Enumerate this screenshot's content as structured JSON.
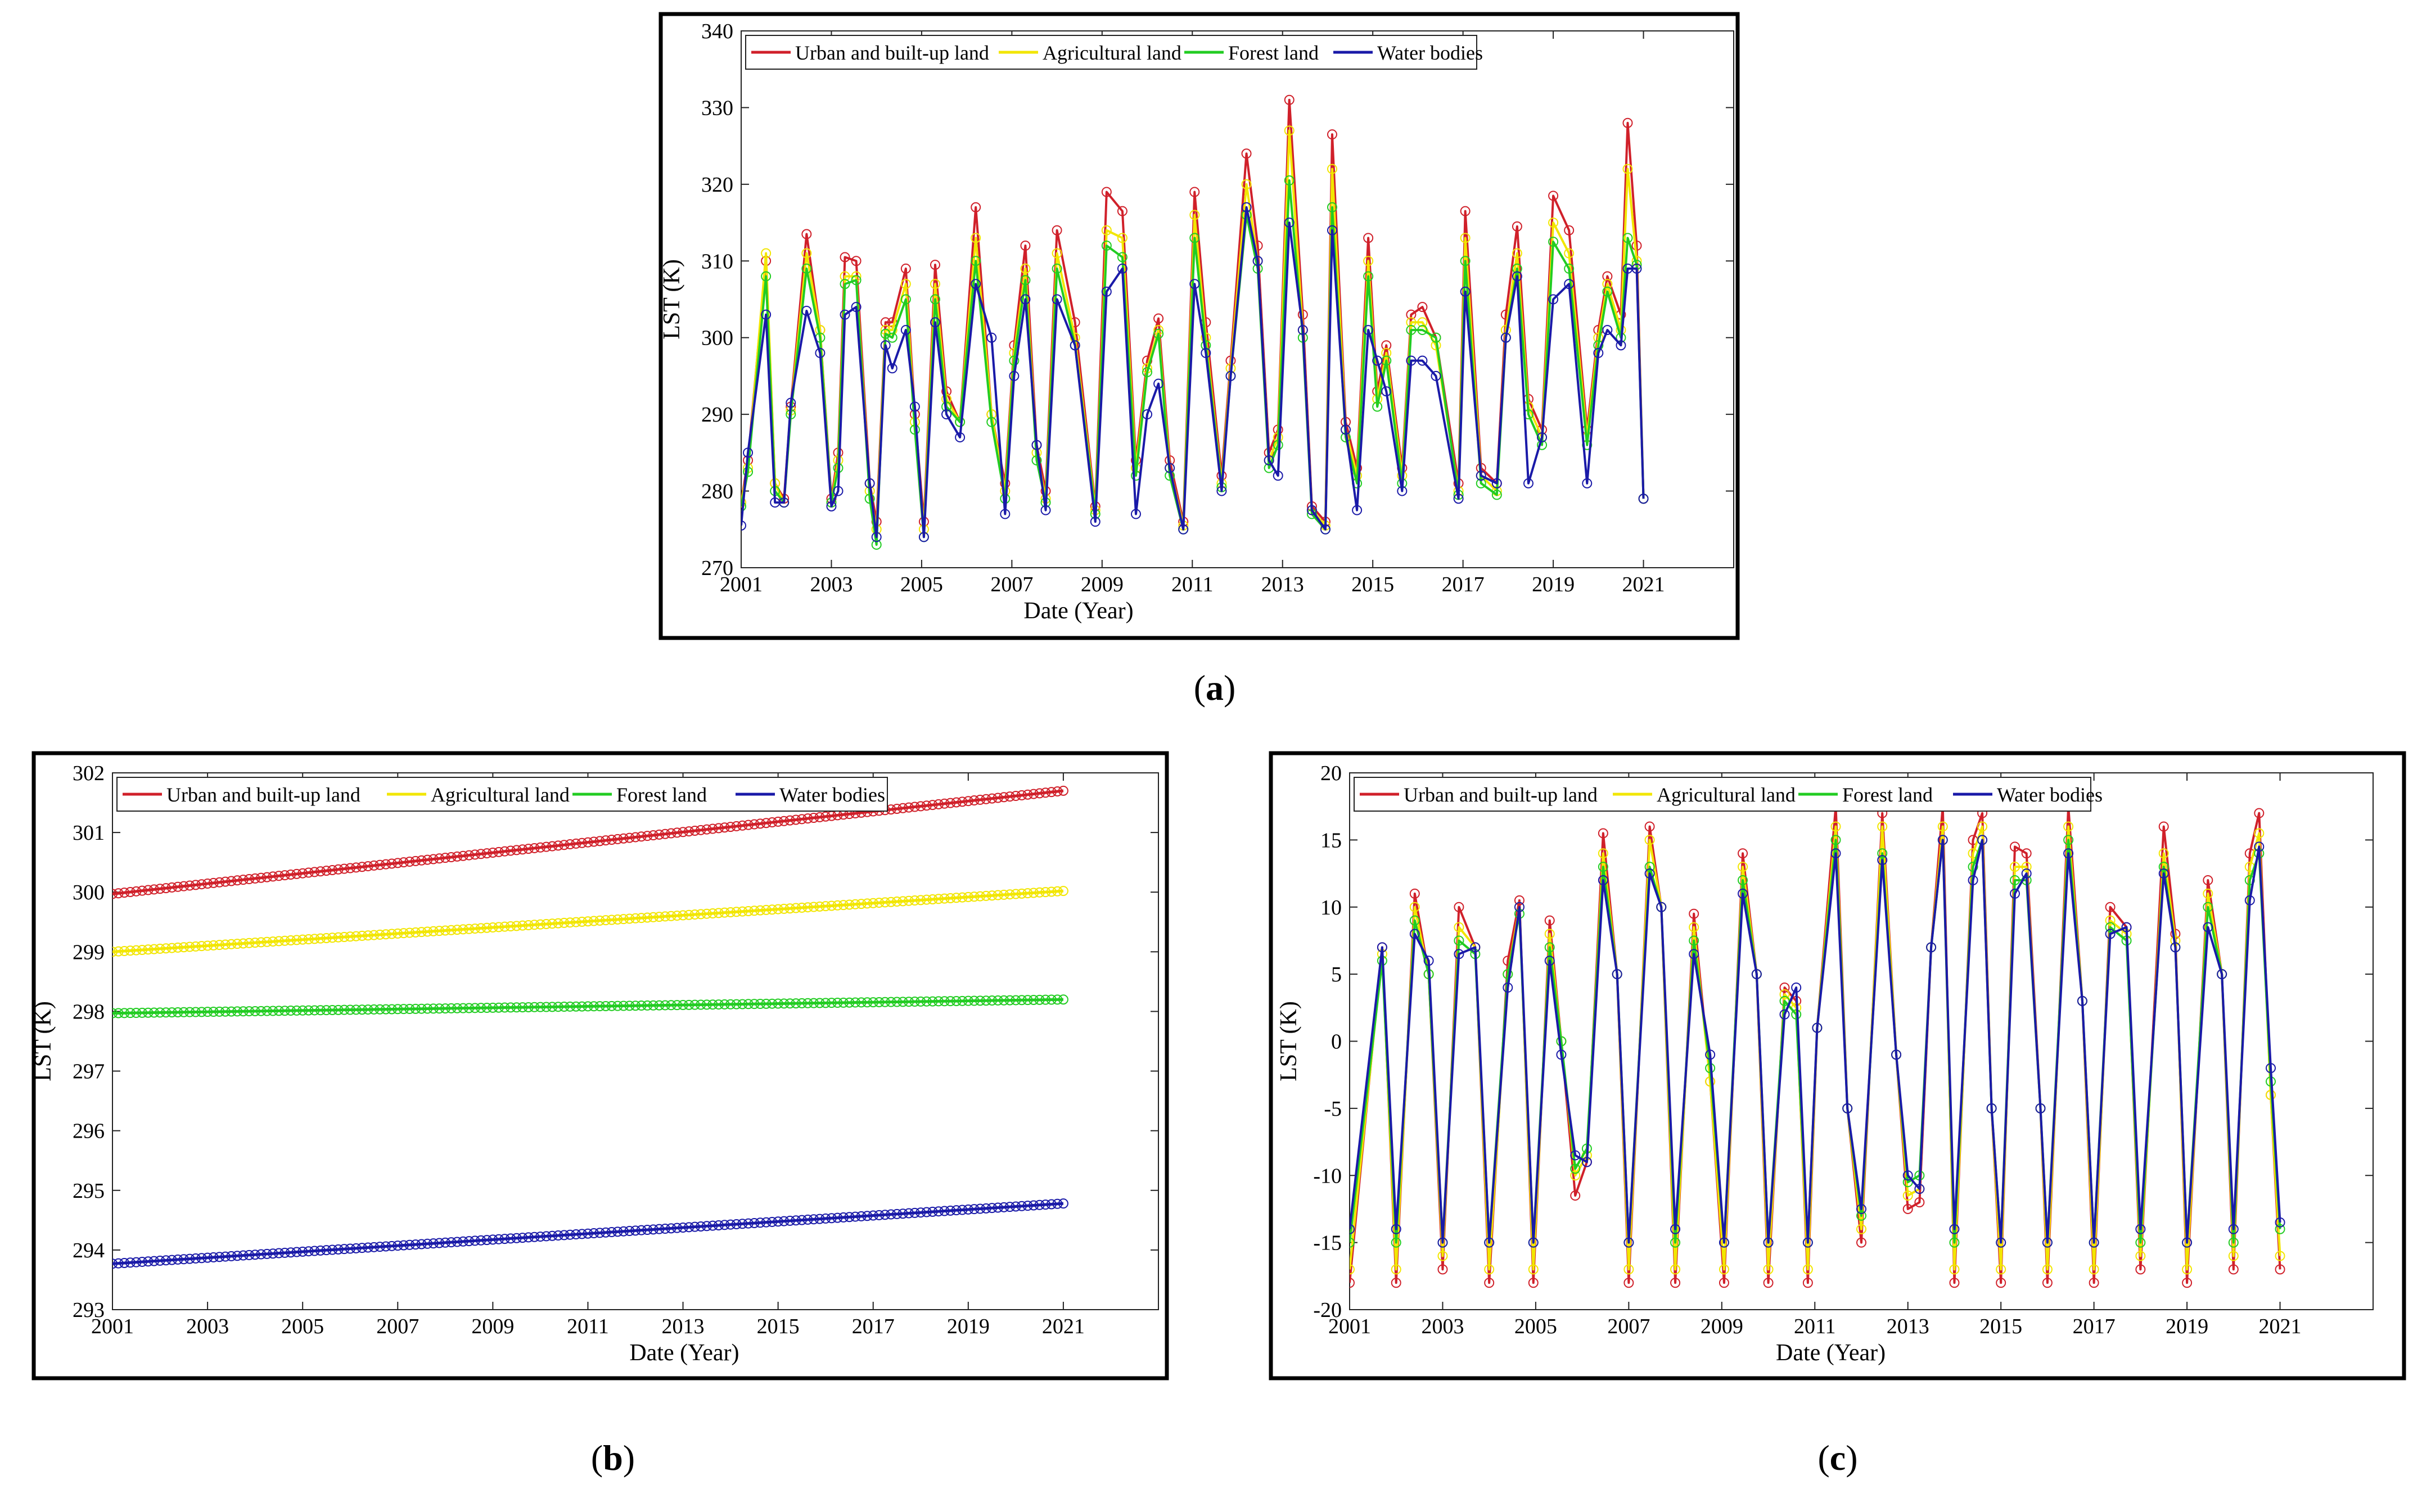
{
  "figure": {
    "panel_labels": [
      "a",
      "b",
      "c"
    ],
    "label_open": "(",
    "label_close": ")"
  },
  "colors": {
    "urban": "#d0202a",
    "agricultural": "#f2e600",
    "forest": "#22cc22",
    "water": "#1a1aa8",
    "frame": "#000000"
  },
  "chart_data": [
    {
      "type": "line",
      "panel": "a",
      "title": "",
      "xlabel": "Date (Year)",
      "ylabel": "LST (K)",
      "xlim": [
        2001,
        2023
      ],
      "ylim": [
        270,
        340
      ],
      "xticks": [
        2001,
        2003,
        2005,
        2007,
        2009,
        2011,
        2013,
        2015,
        2017,
        2019,
        2021
      ],
      "yticks": [
        270,
        280,
        290,
        300,
        310,
        320,
        330,
        340
      ],
      "legend": [
        "Urban and built-up land",
        "Agricultural land",
        "Forest land",
        "Water bodies"
      ],
      "legend_position": "top-left",
      "x": [
        2001.0,
        2001.15,
        2001.55,
        2001.75,
        2001.95,
        2002.1,
        2002.45,
        2002.75,
        2003.0,
        2003.15,
        2003.3,
        2003.55,
        2003.85,
        2004.0,
        2004.2,
        2004.35,
        2004.65,
        2004.85,
        2005.05,
        2005.3,
        2005.55,
        2005.85,
        2006.2,
        2006.55,
        2006.85,
        2007.05,
        2007.3,
        2007.55,
        2007.75,
        2008.0,
        2008.4,
        2008.85,
        2009.1,
        2009.45,
        2009.75,
        2010.0,
        2010.25,
        2010.5,
        2010.8,
        2011.05,
        2011.3,
        2011.65,
        2011.85,
        2012.2,
        2012.45,
        2012.7,
        2012.9,
        2013.15,
        2013.45,
        2013.65,
        2013.95,
        2014.1,
        2014.4,
        2014.65,
        2014.9,
        2015.1,
        2015.3,
        2015.65,
        2015.85,
        2016.1,
        2016.4,
        2016.9,
        2017.05,
        2017.4,
        2017.75,
        2017.95,
        2018.2,
        2018.45,
        2018.75,
        2019.0,
        2019.35,
        2019.75,
        2020.0,
        2020.2,
        2020.5,
        2020.65,
        2020.85,
        2021.0
      ],
      "series": [
        {
          "name": "Urban and built-up land",
          "values": [
            278.5,
            284,
            310,
            281,
            279,
            291,
            313.5,
            301,
            279,
            285,
            310.5,
            310,
            281,
            276,
            302,
            302,
            309,
            290,
            276,
            309.5,
            293,
            289,
            317,
            290,
            281,
            299,
            312,
            286,
            280,
            314,
            302,
            278,
            319,
            316.5,
            284,
            297,
            302.5,
            284,
            276,
            319,
            302,
            282,
            297,
            324,
            312,
            285,
            288,
            331,
            303,
            278,
            276,
            326.5,
            289,
            283,
            313,
            293,
            299,
            283,
            303,
            304,
            300,
            281,
            316.5,
            283,
            281,
            303,
            314.5,
            292,
            288,
            318.5,
            314,
            288,
            301,
            308,
            303,
            328,
            312,
            279
          ]
        },
        {
          "name": "Agricultural land",
          "values": [
            278.5,
            283,
            311,
            281,
            278.5,
            290.5,
            311,
            301,
            278.5,
            284,
            308,
            308,
            280,
            275,
            301,
            301,
            307,
            289,
            275,
            307,
            292,
            289,
            313,
            290,
            280,
            298,
            309,
            285,
            279,
            311,
            300,
            277.5,
            314,
            313,
            283,
            296,
            301,
            283,
            275.5,
            316,
            300,
            281,
            296,
            320,
            310,
            284,
            287,
            327,
            301,
            277.5,
            275.5,
            322,
            288,
            282,
            310,
            292,
            298,
            282,
            302,
            302,
            299,
            280,
            313,
            282,
            280,
            301,
            311,
            291,
            287,
            315,
            311,
            287,
            300,
            307,
            301,
            322,
            310,
            279
          ]
        },
        {
          "name": "Forest land",
          "values": [
            278,
            282.5,
            308,
            280,
            278.5,
            290,
            309,
            300,
            278.5,
            283,
            307,
            307.5,
            279,
            273,
            300.5,
            300,
            305,
            288,
            274,
            305,
            291,
            289,
            310,
            289,
            279,
            297,
            307.5,
            284,
            278.5,
            309,
            299,
            277,
            312,
            310.5,
            282,
            295.5,
            300.5,
            282,
            275,
            313,
            299,
            280.5,
            295,
            316,
            309,
            283,
            286,
            320.5,
            300,
            277,
            275,
            317,
            287,
            281,
            308,
            291,
            297,
            281,
            301,
            301,
            300,
            279.5,
            310,
            281,
            279.5,
            300,
            309,
            290,
            286,
            312.5,
            309,
            286,
            299,
            306,
            300,
            313,
            309.5,
            279
          ]
        },
        {
          "name": "Water bodies",
          "values": [
            275.5,
            285,
            303,
            278.5,
            278.5,
            291.5,
            303.5,
            298,
            278,
            280,
            303,
            304,
            281,
            274,
            299,
            296,
            301,
            291,
            274,
            302,
            290,
            287,
            307,
            300,
            277,
            295,
            305,
            286,
            277.5,
            305,
            299,
            276,
            306,
            309,
            277,
            290,
            294,
            283,
            275,
            307,
            298,
            280,
            295,
            317,
            310,
            284,
            282,
            315,
            301,
            277.5,
            275,
            314,
            288,
            277.5,
            301,
            297,
            293,
            280,
            297,
            297,
            295,
            279,
            306,
            282,
            281,
            300,
            308,
            281,
            287,
            305,
            307,
            281,
            298,
            301,
            299,
            309,
            309,
            279
          ]
        }
      ]
    },
    {
      "type": "line",
      "panel": "b",
      "title": "",
      "xlabel": "Date (Year)",
      "ylabel": "LST (K)",
      "xlim": [
        2001,
        2023
      ],
      "ylim": [
        293,
        302
      ],
      "xticks": [
        2001,
        2003,
        2005,
        2007,
        2009,
        2011,
        2013,
        2015,
        2017,
        2019,
        2021
      ],
      "yticks": [
        293,
        294,
        295,
        296,
        297,
        298,
        299,
        300,
        301,
        302
      ],
      "legend": [
        "Urban and built-up land",
        "Agricultural land",
        "Forest land",
        "Water bodies"
      ],
      "legend_position": "top-left",
      "x": [
        2001,
        2021
      ],
      "series": [
        {
          "name": "Urban and built-up land",
          "values": [
            299.97,
            301.7
          ]
        },
        {
          "name": "Agricultural land",
          "values": [
            299.0,
            300.02
          ]
        },
        {
          "name": "Forest land",
          "values": [
            297.97,
            298.2
          ]
        },
        {
          "name": "Water bodies",
          "values": [
            293.77,
            294.78
          ]
        }
      ]
    },
    {
      "type": "line",
      "panel": "c",
      "title": "",
      "xlabel": "Date (Year)",
      "ylabel": "LST (K)",
      "xlim": [
        2001,
        2023
      ],
      "ylim": [
        -20,
        20
      ],
      "xticks": [
        2001,
        2003,
        2005,
        2007,
        2009,
        2011,
        2013,
        2015,
        2017,
        2019,
        2021
      ],
      "yticks": [
        -20,
        -15,
        -10,
        -5,
        0,
        5,
        10,
        15,
        20
      ],
      "legend": [
        "Urban and built-up land",
        "Agricultural land",
        "Forest land",
        "Water bodies"
      ],
      "legend_position": "top-left",
      "x": [
        2001.0,
        2001.7,
        2002.0,
        2002.4,
        2002.7,
        2003.0,
        2003.35,
        2003.7,
        2004.0,
        2004.4,
        2004.65,
        2004.95,
        2005.3,
        2005.55,
        2005.85,
        2006.1,
        2006.45,
        2006.75,
        2007.0,
        2007.45,
        2007.7,
        2008.0,
        2008.4,
        2008.75,
        2009.05,
        2009.45,
        2009.75,
        2010.0,
        2010.35,
        2010.6,
        2010.85,
        2011.05,
        2011.45,
        2011.7,
        2012.0,
        2012.45,
        2012.75,
        2013.0,
        2013.25,
        2013.5,
        2013.75,
        2014.0,
        2014.4,
        2014.6,
        2014.8,
        2015.0,
        2015.3,
        2015.55,
        2015.85,
        2016.0,
        2016.45,
        2016.75,
        2017.0,
        2017.35,
        2017.7,
        2018.0,
        2018.5,
        2018.75,
        2019.0,
        2019.45,
        2019.75,
        2020.0,
        2020.35,
        2020.55,
        2020.8,
        2021.0
      ],
      "series": [
        {
          "name": "Urban and built-up land",
          "values": [
            -18,
            7,
            -18,
            11,
            5,
            -17,
            10,
            7,
            -18,
            6,
            10.5,
            -18,
            9,
            0,
            -11.5,
            -9,
            15.5,
            5,
            -18,
            16,
            10,
            -18,
            9.5,
            -3,
            -18,
            14,
            5,
            -18,
            4,
            3,
            -18,
            1,
            17.5,
            -5,
            -15,
            17,
            -1,
            -12.5,
            -12,
            7,
            17.5,
            -18,
            15,
            17,
            -5,
            -18,
            14.5,
            14,
            -5,
            -18,
            17.5,
            3,
            -18,
            10,
            8.5,
            -17,
            16,
            8,
            -18,
            12,
            5,
            -17,
            14,
            17,
            -4,
            -17
          ]
        },
        {
          "name": "Agricultural land",
          "values": [
            -17,
            6.5,
            -17,
            10,
            5,
            -16,
            8.5,
            7,
            -17,
            5,
            10,
            -17,
            8,
            0,
            -10,
            -8.5,
            14,
            5,
            -17,
            15,
            10,
            -17,
            8.5,
            -3,
            -17,
            13,
            5,
            -17,
            3.5,
            2.5,
            -17,
            1,
            16,
            -5,
            -14,
            16,
            -1,
            -11.5,
            -11,
            7,
            16,
            -17,
            14,
            16,
            -5,
            -17,
            13,
            13,
            -5,
            -17,
            16,
            3,
            -17,
            9,
            8,
            -16,
            14,
            7.5,
            -17,
            11,
            5,
            -16,
            13,
            15.5,
            -4,
            -16
          ]
        },
        {
          "name": "Forest land",
          "values": [
            -15,
            6,
            -15,
            9,
            5,
            -15,
            7.5,
            6.5,
            -15,
            5,
            9.5,
            -15,
            7,
            0,
            -9.5,
            -8,
            13,
            5,
            -15,
            13,
            10,
            -15,
            7.5,
            -2,
            -15,
            12,
            5,
            -15,
            3,
            2,
            -15,
            1,
            15,
            -5,
            -13,
            14,
            -1,
            -10.5,
            -10,
            7,
            15,
            -15,
            13,
            15,
            -5,
            -15,
            12,
            12,
            -5,
            -15,
            15,
            3,
            -15,
            8.5,
            7.5,
            -15,
            13,
            7,
            -15,
            10,
            5,
            -15,
            12,
            14,
            -3,
            -14
          ]
        },
        {
          "name": "Water bodies",
          "values": [
            -14,
            7,
            -14,
            8,
            6,
            -15,
            6.5,
            7,
            -15,
            4,
            10,
            -15,
            6,
            -1,
            -8.5,
            -9,
            12,
            5,
            -15,
            12.5,
            10,
            -14,
            6.5,
            -1,
            -15,
            11,
            5,
            -15,
            2,
            4,
            -15,
            1,
            14,
            -5,
            -12.5,
            13.5,
            -1,
            -10,
            -11,
            7,
            15,
            -14,
            12,
            15,
            -5,
            -15,
            11,
            12.5,
            -5,
            -15,
            14,
            3,
            -15,
            8,
            8.5,
            -14,
            12.5,
            7,
            -15,
            8.5,
            5,
            -14,
            10.5,
            14.5,
            -2,
            -13.5
          ]
        }
      ]
    }
  ]
}
